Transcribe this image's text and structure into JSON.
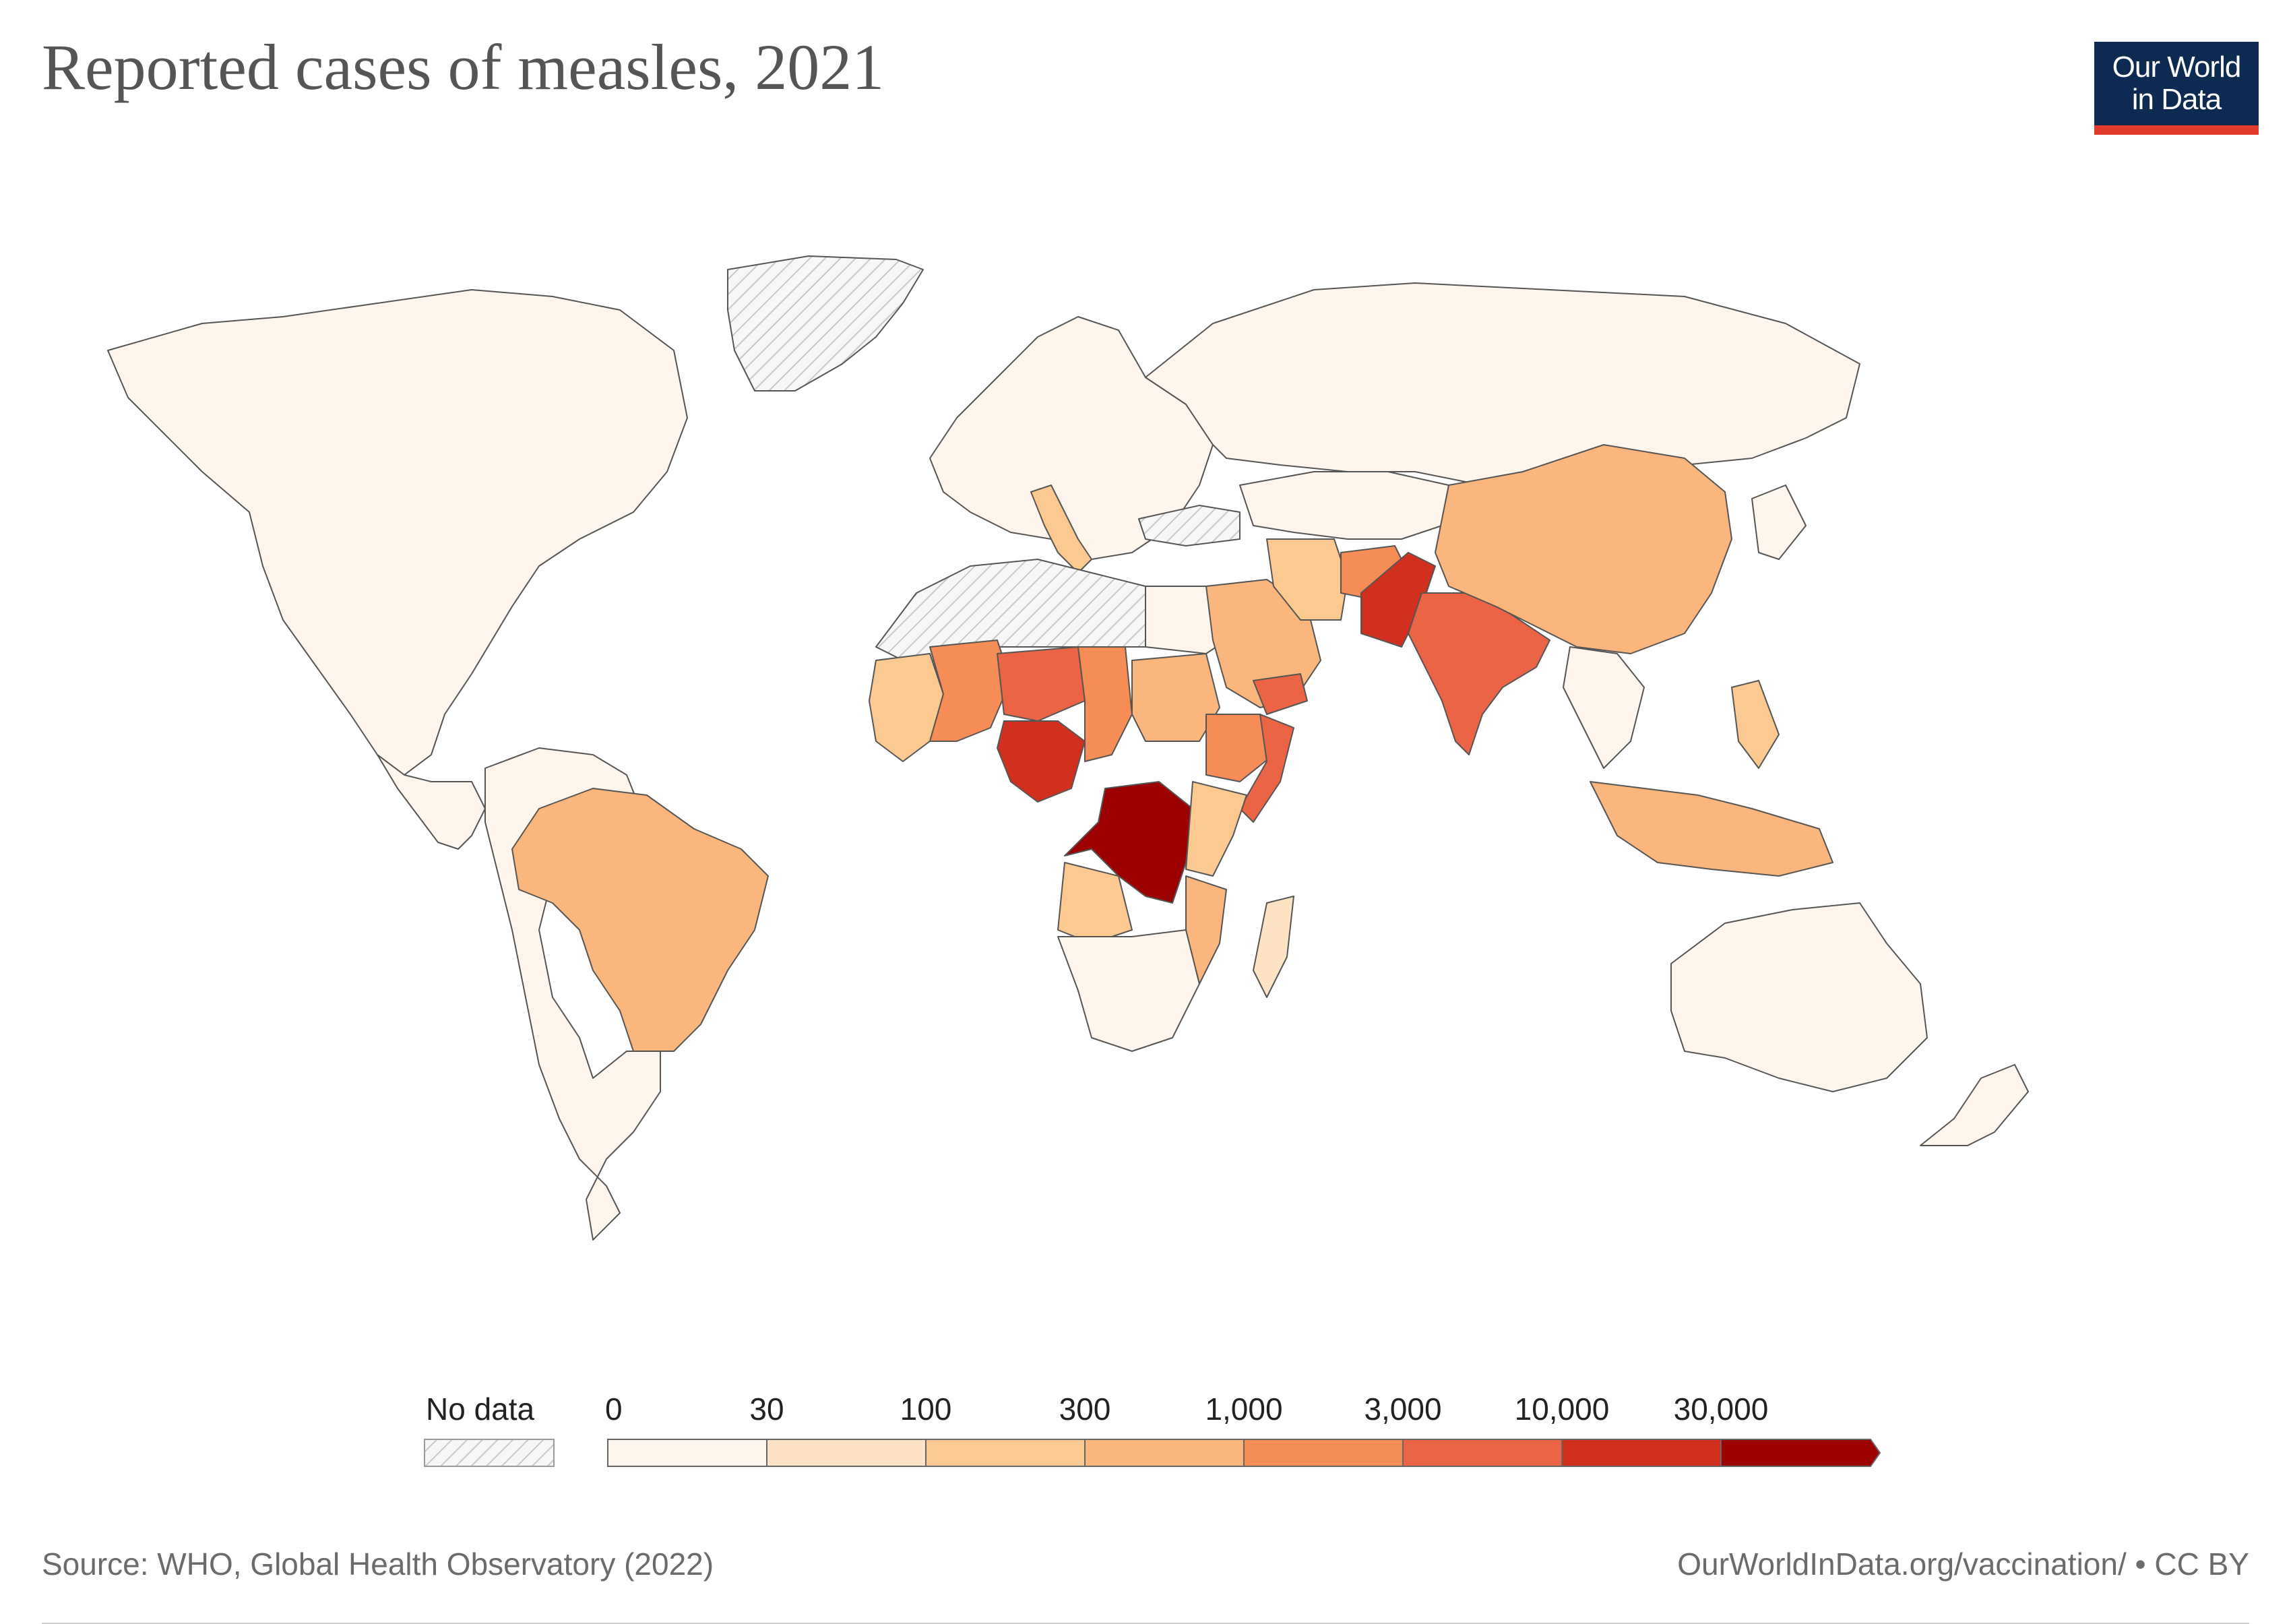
{
  "title": "Reported cases of measles, 2021",
  "logo": {
    "line1": "Our World",
    "line2": "in Data"
  },
  "legend": {
    "no_data_label": "No data",
    "ticks": [
      "0",
      "30",
      "100",
      "300",
      "1,000",
      "3,000",
      "10,000",
      "30,000"
    ],
    "colors": [
      "#fef6ec",
      "#fde3c4",
      "#fcc990",
      "#fab67d",
      "#f68c56",
      "#ec6446",
      "#d2301f",
      "#9c0000"
    ]
  },
  "colors": {
    "no_data_fill": "#f4f4f4",
    "hatch": "#c8c8c8",
    "ocean": "#ffffff",
    "border": "#555555"
  },
  "footer": {
    "source": "Source: WHO, Global Health Observatory (2022)",
    "url": "OurWorldInData.org/vaccination/ • CC BY"
  }
}
